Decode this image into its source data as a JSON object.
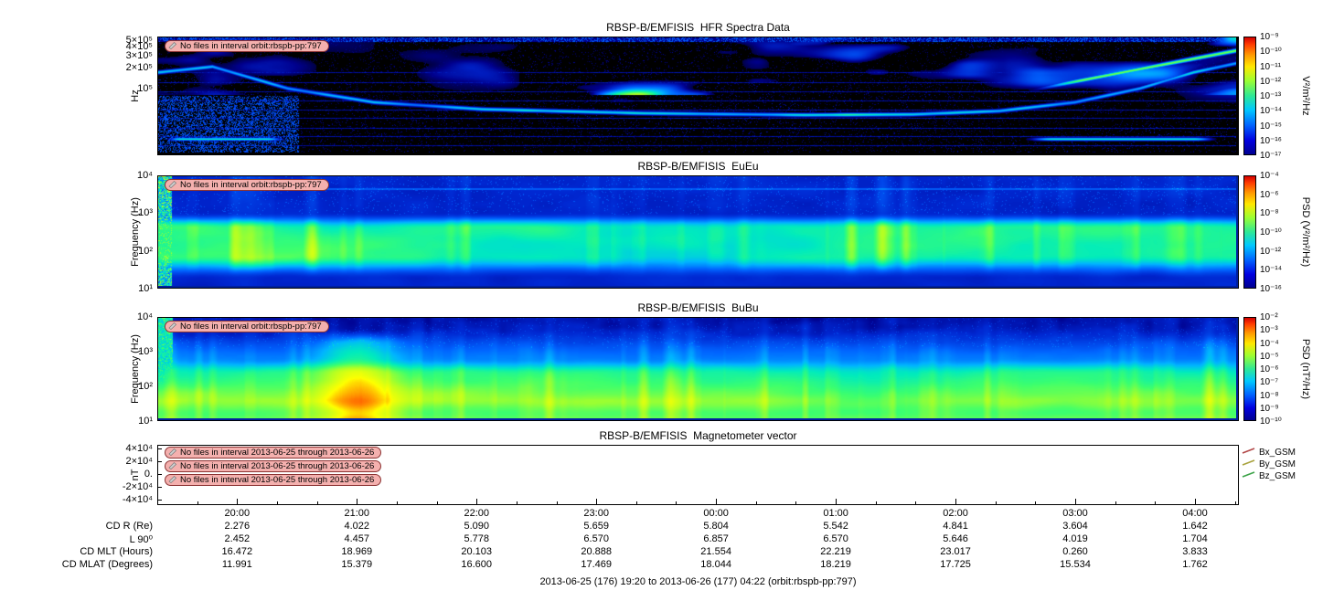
{
  "caption": "2013-06-25 (176) 19:20 to 2013-06-26 (177) 04:22 (orbit:rbspb-pp:797)",
  "panels": [
    {
      "title": "RBSP-B/EMFISIS  HFR Spectra Data",
      "ylabel": "Hz",
      "yscale": "log",
      "yrange": [
        11200,
        560000
      ],
      "yticks": [
        {
          "label": "5×10⁵",
          "value": 500000
        },
        {
          "label": "4×10⁵",
          "value": 400000
        },
        {
          "label": "3×10⁵",
          "value": 300000
        },
        {
          "label": "2×10⁵",
          "value": 200000
        },
        {
          "label": "10⁵",
          "value": 100000
        }
      ],
      "messages": [
        "No files in interval orbit:rbspb-pp:797"
      ],
      "colorbar": {
        "unit": "V²/m²/Hz",
        "ticks": [
          "10⁻⁹",
          "10⁻¹⁰",
          "10⁻¹¹",
          "10⁻¹²",
          "10⁻¹³",
          "10⁻¹⁴",
          "10⁻¹⁵",
          "10⁻¹⁶",
          "10⁻¹⁷"
        ]
      }
    },
    {
      "title": "RBSP-B/EMFISIS  EuEu",
      "ylabel": "Frequency (Hz)",
      "yscale": "log",
      "yrange": [
        10,
        10000
      ],
      "yticks": [
        {
          "label": "10⁴",
          "value": 10000
        },
        {
          "label": "10³",
          "value": 1000
        },
        {
          "label": "10²",
          "value": 100
        },
        {
          "label": "10¹",
          "value": 10
        }
      ],
      "messages": [
        "No files in interval orbit:rbspb-pp:797"
      ],
      "colorbar": {
        "unit": "PSD (V²/m²/Hz)",
        "ticks": [
          "10⁻⁴",
          "10⁻⁶",
          "10⁻⁸",
          "10⁻¹⁰",
          "10⁻¹²",
          "10⁻¹⁴",
          "10⁻¹⁶"
        ]
      }
    },
    {
      "title": "RBSP-B/EMFISIS  BuBu",
      "ylabel": "Frequency (Hz)",
      "yscale": "log",
      "yrange": [
        10,
        10000
      ],
      "yticks": [
        {
          "label": "10⁴",
          "value": 10000
        },
        {
          "label": "10³",
          "value": 1000
        },
        {
          "label": "10²",
          "value": 100
        },
        {
          "label": "10¹",
          "value": 10
        }
      ],
      "messages": [
        "No files in interval orbit:rbspb-pp:797"
      ],
      "colorbar": {
        "unit": "PSD (nT²/Hz)",
        "ticks": [
          "10⁻²",
          "10⁻³",
          "10⁻⁴",
          "10⁻⁵",
          "10⁻⁶",
          "10⁻⁷",
          "10⁻⁸",
          "10⁻⁹",
          "10⁻¹⁰"
        ]
      }
    },
    {
      "title": "RBSP-B/EMFISIS  Magnetometer vector",
      "ylabel": "nT",
      "yscale": "linear",
      "yrange": [
        -48000,
        46000
      ],
      "yticks": [
        {
          "label": "4×10⁴",
          "value": 40000
        },
        {
          "label": "2×10⁴",
          "value": 20000
        },
        {
          "label": "0.",
          "value": 0
        },
        {
          "label": "-2×10⁴",
          "value": -20000
        },
        {
          "label": "-4×10⁴",
          "value": -40000
        }
      ],
      "messages": [
        "No files in interval 2013-06-25 through 2013-06-26",
        "No files in interval 2013-06-25 through 2013-06-26",
        "No files in interval 2013-06-25 through 2013-06-26"
      ],
      "legend": [
        {
          "label": "Bx_GSM",
          "color": "#b24848"
        },
        {
          "label": "By_GSM",
          "color": "#a8a23c"
        },
        {
          "label": "Bz_GSM",
          "color": "#3ca348"
        }
      ]
    }
  ],
  "time_axis": {
    "ticks": [
      "20:00",
      "21:00",
      "22:00",
      "23:00",
      "00:00",
      "01:00",
      "02:00",
      "03:00",
      "04:00"
    ],
    "fracs": [
      0.0738,
      0.1845,
      0.2952,
      0.4059,
      0.5166,
      0.6273,
      0.738,
      0.8487,
      0.9594
    ]
  },
  "ephemeris": {
    "rows": [
      {
        "label": "CD R (Re)",
        "values": [
          "2.276",
          "4.022",
          "5.090",
          "5.659",
          "5.804",
          "5.542",
          "4.841",
          "3.604",
          "1.642"
        ]
      },
      {
        "label": "L 90⁰",
        "values": [
          "2.452",
          "4.457",
          "5.778",
          "6.570",
          "6.857",
          "6.570",
          "5.646",
          "4.019",
          "1.704"
        ]
      },
      {
        "label": "CD MLT (Hours)",
        "values": [
          "16.472",
          "18.969",
          "20.103",
          "20.888",
          "21.554",
          "22.219",
          "23.017",
          "0.260",
          "3.833"
        ]
      },
      {
        "label": "CD MLAT (Degrees)",
        "values": [
          "11.991",
          "15.379",
          "16.600",
          "17.469",
          "18.044",
          "18.219",
          "17.725",
          "15.534",
          "1.762"
        ]
      }
    ]
  },
  "chart_data": [
    {
      "type": "heatmap",
      "title": "RBSP-B/EMFISIS  HFR Spectra Data",
      "ylabel": "Hz",
      "yscale": "log",
      "ylim": [
        11200,
        560000
      ],
      "x_time_range": [
        "2013-06-25 19:20",
        "2013-06-26 04:22"
      ],
      "colorbar": {
        "label": "V^2/m^2/Hz",
        "scale": "log",
        "min": 1e-17,
        "max": 1e-09
      },
      "annotation": "No files in interval orbit:rbspb-pp:797",
      "description": "High-frequency electric spectra: mostly black/dark-blue background with patchy blue-green emissions above 1e5 Hz, a narrow drifting emission line that descends from upper-left, runs near mid-band, and rises toward the top-right, plus faint horizontal interference lines."
    },
    {
      "type": "heatmap",
      "title": "RBSP-B/EMFISIS  EuEu",
      "ylabel": "Frequency (Hz)",
      "yscale": "log",
      "ylim": [
        10,
        10000
      ],
      "x_time_range": [
        "2013-06-25 19:20",
        "2013-06-26 04:22"
      ],
      "colorbar": {
        "label": "PSD (V^2/m^2/Hz)",
        "scale": "log",
        "min": 1e-16,
        "max": 0.0001
      },
      "annotation": "No files in interval orbit:rbspb-pp:797",
      "description": "Electric-field PSD: blue background with a broad bright green-cyan band roughly 30-600 Hz across the whole interval, vertical burst striations, and a thin enhanced line near 4 kHz."
    },
    {
      "type": "heatmap",
      "title": "RBSP-B/EMFISIS  BuBu",
      "ylabel": "Frequency (Hz)",
      "yscale": "log",
      "ylim": [
        10,
        10000
      ],
      "x_time_range": [
        "2013-06-25 19:20",
        "2013-06-26 04:22"
      ],
      "colorbar": {
        "label": "PSD (nT^2/Hz)",
        "scale": "log",
        "min": 1e-10,
        "max": 0.01
      },
      "annotation": "No files in interval orbit:rbspb-pp:797",
      "description": "Magnetic-field PSD: dark blue at high frequencies grading to bright green/yellow-green below ~300 Hz, with dense vertical striations and a strong green burst near 21:10."
    },
    {
      "type": "line",
      "title": "RBSP-B/EMFISIS  Magnetometer vector",
      "ylabel": "nT",
      "ylim": [
        -40000,
        40000
      ],
      "x_time_range": [
        "2013-06-25 19:20",
        "2013-06-26 04:22"
      ],
      "series": [
        {
          "name": "Bx_GSM",
          "values": []
        },
        {
          "name": "By_GSM",
          "values": []
        },
        {
          "name": "Bz_GSM",
          "values": []
        }
      ],
      "annotations": [
        "No files in interval 2013-06-25 through 2013-06-26",
        "No files in interval 2013-06-25 through 2013-06-26",
        "No files in interval 2013-06-25 through 2013-06-26"
      ],
      "note": "No data plotted; panel is empty."
    },
    {
      "type": "table",
      "title": "Orbit ephemeris vs time",
      "columns": [
        "20:00",
        "21:00",
        "22:00",
        "23:00",
        "00:00",
        "01:00",
        "02:00",
        "03:00",
        "04:00"
      ],
      "rows": [
        {
          "label": "CD R (Re)",
          "values": [
            2.276,
            4.022,
            5.09,
            5.659,
            5.804,
            5.542,
            4.841,
            3.604,
            1.642
          ]
        },
        {
          "label": "L 90",
          "values": [
            2.452,
            4.457,
            5.778,
            6.57,
            6.857,
            6.57,
            5.646,
            4.019,
            1.704
          ]
        },
        {
          "label": "CD MLT (Hours)",
          "values": [
            16.472,
            18.969,
            20.103,
            20.888,
            21.554,
            22.219,
            23.017,
            0.26,
            3.833
          ]
        },
        {
          "label": "CD MLAT (Degrees)",
          "values": [
            11.991,
            15.379,
            16.6,
            17.469,
            18.044,
            18.219,
            17.725,
            15.534,
            1.762
          ]
        }
      ]
    }
  ]
}
